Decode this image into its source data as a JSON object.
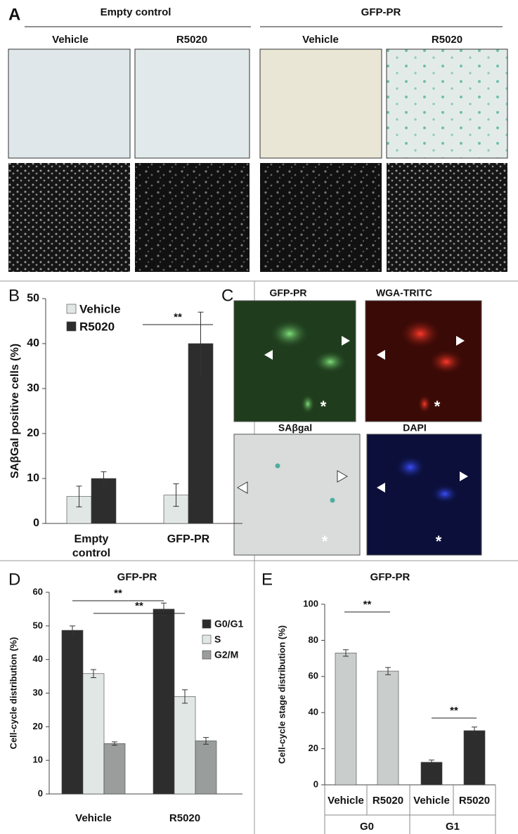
{
  "panel_labels": [
    "A",
    "B",
    "C",
    "D",
    "E"
  ],
  "panel_a": {
    "groups": [
      "Empty control",
      "GFP-PR"
    ],
    "columns": [
      "Vehicle",
      "R5020",
      "Vehicle",
      "R5020"
    ]
  },
  "panel_c": {
    "channels": [
      "GFP-PR",
      "WGA-TRITC",
      "SAβgal",
      "DAPI"
    ],
    "marker": "*"
  },
  "chart_data": [
    {
      "type": "bar",
      "y_label": "SAβGal positive cells (%)",
      "categories": [
        "Empty control",
        "GFP-PR"
      ],
      "series": [
        {
          "name": "Vehicle",
          "color": "#e1e7e4",
          "values": [
            6,
            6.3
          ],
          "errors": [
            2.3,
            2.5
          ]
        },
        {
          "name": "R5020",
          "color": "#2d2d2d",
          "values": [
            10,
            40
          ],
          "errors": [
            1.5,
            7
          ]
        }
      ],
      "ylim": [
        0,
        50
      ],
      "yticks": [
        0,
        10,
        20,
        30,
        40,
        50
      ],
      "annotations": [
        "**"
      ],
      "legend": "upper left"
    },
    {
      "type": "bar",
      "title": "GFP-PR",
      "y_label": "Cell-cycle distribution (%)",
      "categories": [
        "Vehicle",
        "R5020"
      ],
      "series": [
        {
          "name": "G0/G1",
          "color": "#2d2d2d",
          "values": [
            48.7,
            55
          ],
          "errors": [
            1.3,
            1.8
          ]
        },
        {
          "name": "S",
          "color": "#e1e7e4",
          "values": [
            35.8,
            29
          ],
          "errors": [
            1.2,
            2
          ]
        },
        {
          "name": "G2/M",
          "color": "#999e9c",
          "values": [
            15,
            15.8
          ],
          "errors": [
            0.5,
            1
          ]
        }
      ],
      "ylim": [
        0,
        60
      ],
      "yticks": [
        0,
        10,
        20,
        30,
        40,
        50,
        60
      ],
      "annotations": [
        "**",
        "**"
      ],
      "legend": "right"
    },
    {
      "type": "bar",
      "title": "GFP-PR",
      "y_label": "Cell-cycle stage distribution (%)",
      "categories": [
        "Vehicle",
        "R5020",
        "Vehicle",
        "R5020"
      ],
      "groups": [
        "G0",
        "G1"
      ],
      "values": [
        73,
        63,
        12.5,
        30
      ],
      "errors": [
        1.8,
        2,
        1.2,
        2
      ],
      "colors": [
        "#c9cdcb",
        "#c9cdcb",
        "#2d2d2d",
        "#2d2d2d"
      ],
      "ylim": [
        0,
        100
      ],
      "yticks": [
        0,
        20,
        40,
        60,
        80,
        100
      ],
      "annotations": [
        "**",
        "**"
      ]
    }
  ]
}
